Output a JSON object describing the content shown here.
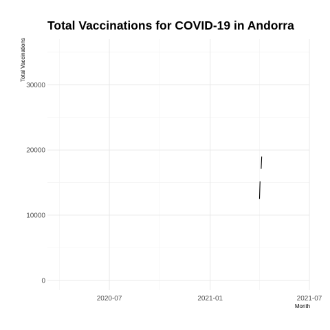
{
  "chart_data": {
    "type": "line",
    "title": "Total Vaccinations for COVID-19 in Andorra",
    "xlabel": "Month",
    "ylabel": "Total Vaccinations",
    "xlim": [
      "2020-03-10",
      "2021-07-01"
    ],
    "ylim": [
      -1500,
      37000
    ],
    "x_ticks": [
      {
        "date": "2020-07-01",
        "label": "2020-07"
      },
      {
        "date": "2021-01-01",
        "label": "2021-01"
      },
      {
        "date": "2021-07-01",
        "label": "2021-07"
      }
    ],
    "x_minor_ticks": [
      "2020-04-01",
      "2020-10-01",
      "2021-04-01"
    ],
    "y_ticks": [
      0,
      10000,
      20000,
      30000
    ],
    "y_minor_ticks": [
      5000,
      15000,
      25000,
      35000
    ],
    "grid": true,
    "series": [
      {
        "segments": [
          {
            "x": [
              "2021-04-01",
              "2021-04-02"
            ],
            "y": [
              12500,
              15200
            ]
          },
          {
            "x": [
              "2021-04-04",
              "2021-04-05"
            ],
            "y": [
              17100,
              19000
            ]
          }
        ]
      }
    ],
    "colors": {
      "line": "#000000",
      "grid_major": "#e6e6e6",
      "grid_minor": "#f2f2f2"
    }
  }
}
